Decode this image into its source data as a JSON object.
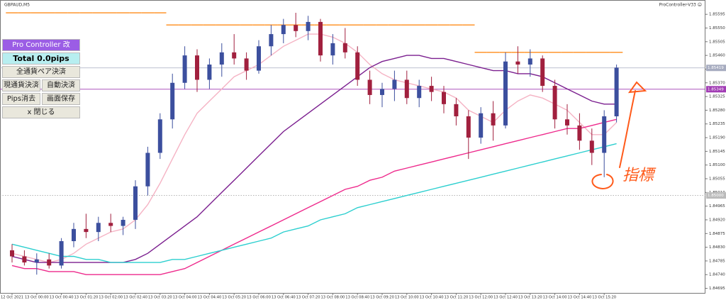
{
  "header": {
    "symbol": "GBPAUD,M5",
    "indicator": "ProController-V33 ☺"
  },
  "panel": {
    "title": "Pro Controller 改",
    "total": "Total   0.0pips",
    "close_all_pairs": "全通貨ペア決済",
    "close_current": "現通貨決済",
    "auto_close": "自動決済",
    "clear_pips": "Pips消去",
    "save_screen": "画面保存",
    "close_panel": "x 閉じる"
  },
  "chart_data": {
    "type": "candlestick",
    "categories": [
      "12 Oct 2021",
      null,
      "13 Oct 00:00",
      null,
      "13 Oct 00:40",
      null,
      "13 Oct 01:20",
      null,
      "13 Oct 02:00",
      null,
      "13 Oct 02:40",
      null,
      "13 Oct 03:20",
      null,
      "13 Oct 04:00",
      null,
      "13 Oct 04:40",
      null,
      "13 Oct 05:20",
      null,
      "13 Oct 06:00",
      null,
      "13 Oct 06:40",
      null,
      "13 Oct 07:20",
      null,
      "13 Oct 08:00",
      null,
      "13 Oct 08:40",
      null,
      "13 Oct 09:20",
      null,
      "13 Oct 10:00",
      null,
      "13 Oct 10:40",
      null,
      "13 Oct 11:20",
      null,
      "13 Oct 12:00",
      null,
      "13 Oct 12:40",
      null,
      "13 Oct 13:20",
      null,
      "13 Oct 14:00",
      null,
      "13 Oct 14:40",
      null,
      "13 Oct 15:20",
      null
    ],
    "open": [
      1.8482,
      1.848,
      1.8478,
      1.8479,
      1.8477,
      1.8485,
      1.8489,
      1.8488,
      1.8491,
      1.849,
      1.8492,
      1.8503,
      1.8514,
      1.8525,
      1.8537,
      1.8546,
      1.8538,
      1.8543,
      1.8547,
      1.8545,
      1.8541,
      1.8549,
      1.8553,
      1.8556,
      1.8554,
      1.8557,
      1.8546,
      1.855,
      1.8547,
      1.8538,
      1.8533,
      1.8535,
      1.8538,
      1.8532,
      1.8536,
      1.8534,
      1.853,
      1.8526,
      1.8519,
      1.8527,
      1.8523,
      1.8544,
      1.8543,
      1.8545,
      1.8536,
      1.8525,
      1.8523,
      1.8518,
      1.8514,
      1.8526
    ],
    "high": [
      1.8484,
      1.8482,
      1.8481,
      1.8481,
      1.8486,
      1.8491,
      1.8494,
      1.8493,
      1.8494,
      1.8493,
      1.8505,
      1.8516,
      1.8527,
      1.854,
      1.8549,
      1.8548,
      1.8545,
      1.855,
      1.8553,
      1.8547,
      1.8551,
      1.8556,
      1.8558,
      1.856,
      1.8559,
      1.8558,
      1.8553,
      1.8555,
      1.8549,
      1.8541,
      1.8537,
      1.8541,
      1.8541,
      1.8538,
      1.8539,
      1.8536,
      1.8532,
      1.8528,
      1.8529,
      1.8531,
      1.8547,
      1.8549,
      1.8548,
      1.8546,
      1.8538,
      1.853,
      1.8527,
      1.8522,
      1.8528,
      1.8543
    ],
    "low": [
      1.8478,
      1.8477,
      1.8474,
      1.8476,
      1.8476,
      1.8483,
      1.8486,
      1.8485,
      1.8488,
      1.8487,
      1.8489,
      1.85,
      1.8512,
      1.8522,
      1.8535,
      1.8534,
      1.8535,
      1.8539,
      1.8543,
      1.8538,
      1.854,
      1.8546,
      1.855,
      1.8552,
      1.8551,
      1.8544,
      1.8543,
      1.8545,
      1.8536,
      1.853,
      1.8529,
      1.8531,
      1.853,
      1.8529,
      1.8531,
      1.8527,
      1.8523,
      1.8512,
      1.8517,
      1.8518,
      1.8522,
      1.854,
      1.8539,
      1.8534,
      1.8522,
      1.852,
      1.8515,
      1.851,
      1.8506,
      1.8524
    ],
    "close": [
      1.848,
      1.8478,
      1.8479,
      1.8477,
      1.8485,
      1.8489,
      1.8488,
      1.8491,
      1.849,
      1.8492,
      1.8503,
      1.8514,
      1.8525,
      1.8537,
      1.8546,
      1.8538,
      1.8543,
      1.8547,
      1.8545,
      1.8541,
      1.8549,
      1.8553,
      1.8556,
      1.8554,
      1.8557,
      1.8546,
      1.855,
      1.8547,
      1.8538,
      1.8533,
      1.8535,
      1.8538,
      1.8532,
      1.8536,
      1.8534,
      1.853,
      1.8526,
      1.8519,
      1.8527,
      1.8523,
      1.8544,
      1.8543,
      1.8545,
      1.8536,
      1.8525,
      1.8523,
      1.8518,
      1.8514,
      1.8526,
      1.8542
    ],
    "up_color": "#3c4f9e",
    "down_color": "#a1203e",
    "series": [
      {
        "color": "#ff8c1a",
        "style": "step",
        "values": [
          1.856,
          1.856,
          1.856,
          1.856,
          1.856,
          1.856,
          1.856,
          1.856,
          1.856,
          1.856,
          1.856,
          1.856,
          1.856,
          1.8556,
          1.8556,
          1.8556,
          1.8556,
          1.8556,
          1.8556,
          1.8556,
          1.8556,
          1.8556,
          1.8556,
          1.8556,
          1.8556,
          1.8556,
          1.8556,
          1.8556,
          1.8556,
          1.8556,
          1.8556,
          1.8556,
          1.8556,
          1.8556,
          1.8556,
          1.8556,
          1.8556,
          1.8556,
          1.8547,
          1.8547,
          1.8547,
          1.8547,
          1.8547,
          1.8547,
          1.8547,
          1.8547,
          1.8547,
          1.8547,
          1.8547,
          1.8547
        ]
      },
      {
        "color": "#f5b3c4",
        "style": "line",
        "values": [
          1.8481,
          1.848,
          1.8479,
          1.8478,
          1.8479,
          1.8481,
          1.8484,
          1.8486,
          1.8488,
          1.8489,
          1.8492,
          1.8497,
          1.8504,
          1.8512,
          1.852,
          1.8527,
          1.8531,
          1.8535,
          1.8539,
          1.8541,
          1.8543,
          1.8546,
          1.8549,
          1.8551,
          1.8553,
          1.8553,
          1.8552,
          1.855,
          1.8547,
          1.8543,
          1.854,
          1.8538,
          1.8537,
          1.8536,
          1.8535,
          1.8534,
          1.8532,
          1.8528,
          1.8526,
          1.8524,
          1.8528,
          1.8531,
          1.8533,
          1.8532,
          1.853,
          1.8528,
          1.8524,
          1.852,
          1.852,
          1.8524
        ]
      },
      {
        "color": "#7b1f8f",
        "style": "line",
        "values": [
          1.848,
          1.8479,
          1.8478,
          1.8478,
          1.8478,
          1.8478,
          1.8478,
          1.8478,
          1.8478,
          1.8478,
          1.8479,
          1.8481,
          1.8484,
          1.8487,
          1.849,
          1.8493,
          1.8497,
          1.8501,
          1.8505,
          1.8509,
          1.8513,
          1.8517,
          1.8521,
          1.8524,
          1.8527,
          1.853,
          1.8533,
          1.8536,
          1.8539,
          1.8542,
          1.8544,
          1.8545,
          1.8546,
          1.8546,
          1.8545,
          1.8545,
          1.8544,
          1.8543,
          1.8542,
          1.8541,
          1.8541,
          1.854,
          1.854,
          1.8539,
          1.8537,
          1.8535,
          1.8533,
          1.8531,
          1.853,
          1.853
        ]
      },
      {
        "color": "#ee2a8c",
        "style": "line",
        "values": [
          1.8477,
          1.8476,
          1.8476,
          1.8475,
          1.8475,
          1.8475,
          1.8474,
          1.8474,
          1.8474,
          1.8474,
          1.8474,
          1.8474,
          1.8474,
          1.8475,
          1.8476,
          1.8478,
          1.848,
          1.8482,
          1.8484,
          1.8486,
          1.8488,
          1.849,
          1.8492,
          1.8494,
          1.8496,
          1.8498,
          1.85,
          1.8502,
          1.8503,
          1.8505,
          1.8506,
          1.8508,
          1.8509,
          1.851,
          1.8511,
          1.8512,
          1.8513,
          1.8514,
          1.8515,
          1.8516,
          1.8517,
          1.8518,
          1.8519,
          1.852,
          1.8521,
          1.8522,
          1.8522,
          1.8523,
          1.8524,
          1.8525
        ]
      },
      {
        "color": "#2ccfcf",
        "style": "line",
        "values": [
          1.8484,
          1.8483,
          1.8482,
          1.8481,
          1.848,
          1.848,
          1.8479,
          1.8479,
          1.8478,
          1.8478,
          1.8478,
          1.8478,
          1.8478,
          1.8479,
          1.8479,
          1.848,
          1.8481,
          1.8482,
          1.8483,
          1.8484,
          1.8485,
          1.8486,
          1.8488,
          1.8489,
          1.849,
          1.8492,
          1.8493,
          1.8494,
          1.8496,
          1.8497,
          1.8498,
          1.8499,
          1.85,
          1.8501,
          1.8502,
          1.8503,
          1.8504,
          1.8505,
          1.8506,
          1.8507,
          1.8508,
          1.8509,
          1.851,
          1.8511,
          1.8512,
          1.8513,
          1.8514,
          1.8515,
          1.8516,
          1.8517
        ]
      }
    ],
    "ylim": [
      1.8468,
      1.85642
    ],
    "yticks": [
      1.85595,
      {
        "value": 1.8555,
        "label": "1.85550"
      },
      1.85505,
      {
        "value": 1.8546,
        "label": "1.85460"
      },
      1.85415,
      {
        "value": 1.8537,
        "label": "1.85370"
      },
      1.85325,
      {
        "value": 1.8528,
        "label": "1.85280"
      },
      1.85235,
      {
        "value": 1.8519,
        "label": "1.85190"
      },
      1.85145,
      {
        "value": 1.851,
        "label": "1.85100"
      },
      1.85055,
      {
        "value": 1.8501,
        "label": "1.85010"
      },
      1.84965,
      {
        "value": 1.8492,
        "label": "1.84920"
      },
      1.84875,
      {
        "value": 1.8483,
        "label": "1.84830"
      },
      1.84785,
      {
        "value": 1.8474,
        "label": "1.84740"
      },
      1.84695
    ],
    "hlines": [
      {
        "value": 1.85419,
        "label": "1.85419",
        "color": "#a7acc0",
        "style": "solid"
      },
      {
        "value": 1.85349,
        "label": "1.85349",
        "color": "#a13cb4",
        "style": "solid"
      },
      {
        "value": 1.85,
        "label": "1.85000",
        "color": "#9a9a9a",
        "style": "dotted"
      }
    ],
    "annotation": "指標"
  }
}
